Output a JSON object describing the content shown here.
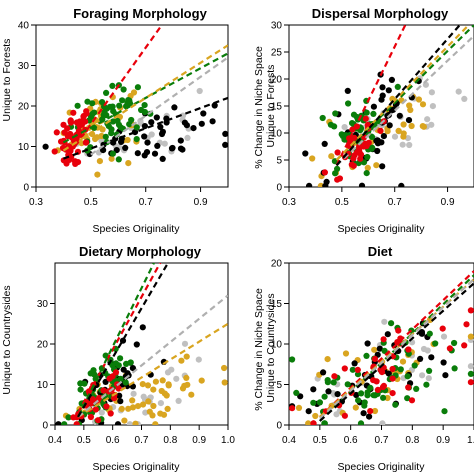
{
  "chart_data": [
    {
      "type": "scatter",
      "title": "Foraging Morphology",
      "xlabel": "Species Originality",
      "ylabel": "Unique to Forests",
      "xlim": [
        0.3,
        1.0
      ],
      "ylim": [
        0,
        40
      ],
      "xticks": [
        "0.3",
        "0.5",
        "0.7",
        "0.9"
      ],
      "yticks": [
        "0",
        "10",
        "20",
        "30",
        "40"
      ],
      "series": [
        {
          "color": "#e8000b",
          "trend": [
            [
              0.4,
              6
            ],
            [
              0.78,
              42
            ]
          ],
          "cluster": {
            "cx": 0.44,
            "cy": 12,
            "sx": 0.035,
            "sy": 4.0,
            "n": 55
          }
        },
        {
          "color": "#0a7d0a",
          "trend": [
            [
              0.4,
              11
            ],
            [
              1.0,
              33
            ]
          ],
          "cluster": {
            "cx": 0.57,
            "cy": 17,
            "sx": 0.07,
            "sy": 5.0,
            "n": 60
          }
        },
        {
          "color": "#d9a520",
          "trend": [
            [
              0.4,
              9
            ],
            [
              1.0,
              35
            ]
          ],
          "cluster": {
            "cx": 0.52,
            "cy": 15,
            "sx": 0.08,
            "sy": 6.0,
            "n": 50
          }
        },
        {
          "color": "#c0c0c0",
          "trend": [
            [
              0.5,
              8
            ],
            [
              1.0,
              32
            ]
          ],
          "cluster": {
            "cx": 0.7,
            "cy": 14,
            "sx": 0.1,
            "sy": 5.0,
            "n": 22
          }
        },
        {
          "color": "#000000",
          "trend": [
            [
              0.4,
              7
            ],
            [
              1.0,
              22
            ]
          ],
          "cluster": {
            "cx": 0.72,
            "cy": 13,
            "sx": 0.11,
            "sy": 5.0,
            "n": 45
          }
        }
      ]
    },
    {
      "type": "scatter",
      "title": "Dispersal Morphology",
      "xlabel": "Species Originality",
      "ylabel": "% Change in Niche Space Unique to Forests",
      "xlim": [
        0.3,
        1.0
      ],
      "ylim": [
        0,
        30
      ],
      "xticks": [
        "0.3",
        "0.5",
        "0.7",
        "0.9"
      ],
      "yticks": [
        "0",
        "5",
        "10",
        "15",
        "20",
        "25",
        "30"
      ],
      "series": [
        {
          "color": "#e8000b",
          "trend": [
            [
              0.48,
              4
            ],
            [
              0.76,
              32
            ]
          ],
          "cluster": {
            "cx": 0.56,
            "cy": 8,
            "sx": 0.04,
            "sy": 3.0,
            "n": 35
          }
        },
        {
          "color": "#0a7d0a",
          "trend": [
            [
              0.48,
              5
            ],
            [
              1.0,
              30
            ]
          ],
          "cluster": {
            "cx": 0.56,
            "cy": 10,
            "sx": 0.05,
            "sy": 4.5,
            "n": 60
          }
        },
        {
          "color": "#d9a520",
          "trend": [
            [
              0.48,
              5
            ],
            [
              1.0,
              31
            ]
          ],
          "cluster": {
            "cx": 0.68,
            "cy": 11,
            "sx": 0.12,
            "sy": 4.0,
            "n": 35
          }
        },
        {
          "color": "#c0c0c0",
          "trend": [
            [
              0.48,
              4
            ],
            [
              1.0,
              28
            ]
          ],
          "cluster": {
            "cx": 0.72,
            "cy": 12,
            "sx": 0.13,
            "sy": 4.0,
            "n": 28
          }
        },
        {
          "color": "#000000",
          "trend": [
            [
              0.48,
              4
            ],
            [
              1.0,
              33
            ]
          ],
          "cluster": {
            "cx": 0.6,
            "cy": 11,
            "sx": 0.1,
            "sy": 6.0,
            "n": 50
          }
        }
      ]
    },
    {
      "type": "scatter",
      "title": "Dietary Morphology",
      "xlabel": "Species Originality",
      "ylabel": "Unique to Countrysides",
      "xlim": [
        0.4,
        1.0
      ],
      "ylim": [
        0,
        40
      ],
      "xticks": [
        "0.4",
        "0.5",
        "0.6",
        "0.7",
        "0.8",
        "0.9",
        "1.0"
      ],
      "yticks": [
        "0",
        "10",
        "20",
        "30"
      ],
      "series": [
        {
          "color": "#e8000b",
          "trend": [
            [
              0.48,
              3
            ],
            [
              0.78,
              42
            ]
          ],
          "cluster": {
            "cx": 0.55,
            "cy": 6,
            "sx": 0.05,
            "sy": 4.0,
            "n": 30
          }
        },
        {
          "color": "#0a7d0a",
          "trend": [
            [
              0.48,
              2
            ],
            [
              0.75,
              41
            ]
          ],
          "cluster": {
            "cx": 0.56,
            "cy": 9,
            "sx": 0.06,
            "sy": 5.0,
            "n": 55
          }
        },
        {
          "color": "#d9a520",
          "trend": [
            [
              0.48,
              2
            ],
            [
              1.0,
              25
            ]
          ],
          "cluster": {
            "cx": 0.72,
            "cy": 7,
            "sx": 0.12,
            "sy": 5.0,
            "n": 55
          }
        },
        {
          "color": "#c0c0c0",
          "trend": [
            [
              0.48,
              2
            ],
            [
              1.0,
              32
            ]
          ],
          "cluster": {
            "cx": 0.74,
            "cy": 9,
            "sx": 0.12,
            "sy": 6.0,
            "n": 22
          }
        },
        {
          "color": "#000000",
          "trend": [
            [
              0.48,
              2
            ],
            [
              0.8,
              41
            ]
          ],
          "cluster": {
            "cx": 0.6,
            "cy": 10,
            "sx": 0.07,
            "sy": 6.0,
            "n": 40
          }
        }
      ]
    },
    {
      "type": "scatter",
      "title": "Diet",
      "xlabel": "Species Originality",
      "ylabel": "% Change in Niche Space Unique to Countrysides",
      "xlim": [
        0.4,
        1.0
      ],
      "ylim": [
        0,
        20
      ],
      "xticks": [
        "0.4",
        "0.5",
        "0.6",
        "0.7",
        "0.8",
        "0.9",
        "1.0"
      ],
      "yticks": [
        "0",
        "5",
        "10",
        "15",
        "20"
      ],
      "series": [
        {
          "color": "#e8000b",
          "trend": [
            [
              0.5,
              1
            ],
            [
              1.0,
              19
            ]
          ],
          "cluster": {
            "cx": 0.72,
            "cy": 7,
            "sx": 0.14,
            "sy": 4.0,
            "n": 40
          }
        },
        {
          "color": "#0a7d0a",
          "trend": [
            [
              0.5,
              0.5
            ],
            [
              1.0,
              18.5
            ]
          ],
          "cluster": {
            "cx": 0.7,
            "cy": 6,
            "sx": 0.14,
            "sy": 4.5,
            "n": 60
          }
        },
        {
          "color": "#d9a520",
          "trend": [
            [
              0.5,
              1
            ],
            [
              1.0,
              18
            ]
          ],
          "cluster": {
            "cx": 0.7,
            "cy": 6,
            "sx": 0.13,
            "sy": 4.0,
            "n": 30
          }
        },
        {
          "color": "#c0c0c0",
          "trend": [
            [
              0.5,
              0.8
            ],
            [
              1.0,
              18
            ]
          ],
          "cluster": {
            "cx": 0.72,
            "cy": 7,
            "sx": 0.14,
            "sy": 4.0,
            "n": 25
          }
        },
        {
          "color": "#000000",
          "trend": [
            [
              0.5,
              0.5
            ],
            [
              1.0,
              17.5
            ]
          ],
          "cluster": {
            "cx": 0.7,
            "cy": 6,
            "sx": 0.14,
            "sy": 4.0,
            "n": 40
          }
        }
      ]
    }
  ]
}
